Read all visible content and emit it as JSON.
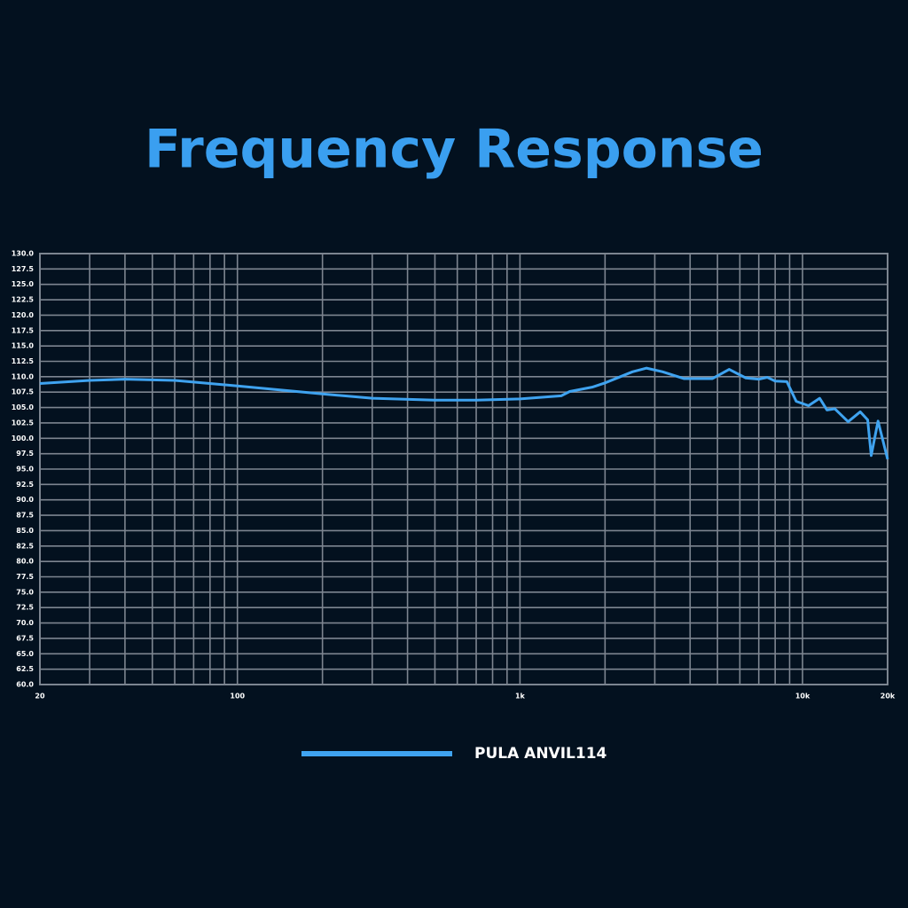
{
  "chart_data": {
    "type": "line",
    "title": "Frequency Response",
    "log_x": true,
    "grid": true,
    "xlim": [
      20,
      20000
    ],
    "ylim": [
      60,
      130
    ],
    "xticks": [
      20,
      100,
      {
        "value": 1000,
        "label": "1k"
      },
      {
        "value": 10000,
        "label": "10k"
      },
      {
        "value": 20000,
        "label": "20k"
      }
    ],
    "xgrid": [
      20,
      30,
      40,
      50,
      60,
      70,
      80,
      90,
      100,
      200,
      300,
      400,
      500,
      600,
      700,
      800,
      900,
      1000,
      2000,
      3000,
      4000,
      5000,
      6000,
      7000,
      8000,
      9000,
      10000,
      20000
    ],
    "yticks": [
      {
        "value": 60,
        "label": "60.0"
      },
      {
        "value": 62.5,
        "label": "62.5"
      },
      {
        "value": 65,
        "label": "65.0"
      },
      {
        "value": 67.5,
        "label": "67.5"
      },
      {
        "value": 70,
        "label": "70.0"
      },
      {
        "value": 72.5,
        "label": "72.5"
      },
      {
        "value": 75,
        "label": "75.0"
      },
      {
        "value": 77.5,
        "label": "77.5"
      },
      {
        "value": 80,
        "label": "80.0"
      },
      {
        "value": 82.5,
        "label": "82.5"
      },
      {
        "value": 85,
        "label": "85.0"
      },
      {
        "value": 87.5,
        "label": "87.5"
      },
      {
        "value": 90,
        "label": "90.0"
      },
      {
        "value": 92.5,
        "label": "92.5"
      },
      {
        "value": 95,
        "label": "95.0"
      },
      {
        "value": 97.5,
        "label": "97.5"
      },
      {
        "value": 100,
        "label": "100.0"
      },
      {
        "value": 102.5,
        "label": "102.5"
      },
      {
        "value": 105,
        "label": "105.0"
      },
      {
        "value": 107.5,
        "label": "107.5"
      },
      {
        "value": 110,
        "label": "110.0"
      },
      {
        "value": 112.5,
        "label": "112.5"
      },
      {
        "value": 115,
        "label": "115.0"
      },
      {
        "value": 117.5,
        "label": "117.5"
      },
      {
        "value": 120,
        "label": "120.0"
      },
      {
        "value": 122.5,
        "label": "122.5"
      },
      {
        "value": 125,
        "label": "125.0"
      },
      {
        "value": 127.5,
        "label": "127.5"
      },
      {
        "value": 130,
        "label": "130.0"
      }
    ],
    "x": [
      20,
      30,
      40,
      60,
      100,
      200,
      300,
      500,
      700,
      1000,
      1400,
      1500,
      1800,
      2000,
      2500,
      2800,
      3200,
      3800,
      4800,
      5500,
      6300,
      7000,
      7500,
      8000,
      8800,
      9500,
      10500,
      11500,
      12200,
      13000,
      14500,
      16000,
      17000,
      17500,
      18500,
      20000
    ],
    "series": [
      {
        "name": "PULA ANVIL114",
        "color": "#3fa3f0",
        "values": [
          108.9,
          109.4,
          109.6,
          109.4,
          108.5,
          107.2,
          106.5,
          106.2,
          106.2,
          106.4,
          106.9,
          107.6,
          108.3,
          109.0,
          110.8,
          111.4,
          110.8,
          109.7,
          109.7,
          111.2,
          109.8,
          109.6,
          109.9,
          109.3,
          109.2,
          106.0,
          105.3,
          106.5,
          104.6,
          104.8,
          102.7,
          104.3,
          103.0,
          97.2,
          102.8,
          96.6
        ]
      }
    ]
  }
}
